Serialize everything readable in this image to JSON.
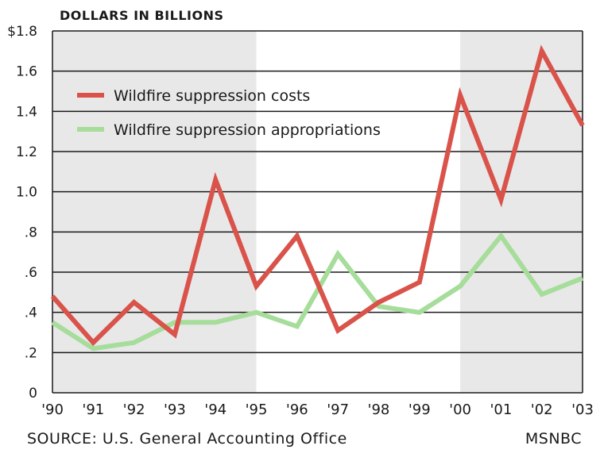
{
  "chart_data": {
    "type": "line",
    "unit_label": "DOLLARS IN BILLIONS",
    "categories": [
      "'90",
      "'91",
      "'92",
      "'93",
      "'94",
      "'95",
      "'96",
      "'97",
      "'98",
      "'99",
      "'00",
      "'01",
      "'02",
      "'03"
    ],
    "series": [
      {
        "name": "Wildfire suppression costs",
        "color": "#d9534a",
        "values": [
          0.48,
          0.25,
          0.45,
          0.29,
          1.06,
          0.53,
          0.78,
          0.31,
          0.45,
          0.55,
          1.48,
          0.96,
          1.7,
          1.33
        ]
      },
      {
        "name": "Wildfire suppression appropriations",
        "color": "#a6dd9a",
        "values": [
          0.35,
          0.22,
          0.25,
          0.35,
          0.35,
          0.4,
          0.33,
          0.69,
          0.43,
          0.4,
          0.53,
          0.78,
          0.49,
          0.57
        ]
      }
    ],
    "ylim": [
      0,
      1.8
    ],
    "yticks": [
      0,
      0.2,
      0.4,
      0.6,
      0.8,
      1.0,
      1.2,
      1.4,
      1.6,
      1.8
    ],
    "ytick_labels": [
      "0",
      ".2",
      ".4",
      ".6",
      ".8",
      "1.0",
      "1.2",
      "1.4",
      "1.6",
      "$1.8"
    ],
    "grid": true,
    "legend_position": "top-left",
    "shaded_bands": [
      {
        "from": "'90",
        "to": "'95"
      },
      {
        "from": "'00",
        "to": "'03"
      }
    ]
  },
  "footer": {
    "source": "SOURCE: U.S. General Accounting Office",
    "credit": "MSNBC"
  }
}
